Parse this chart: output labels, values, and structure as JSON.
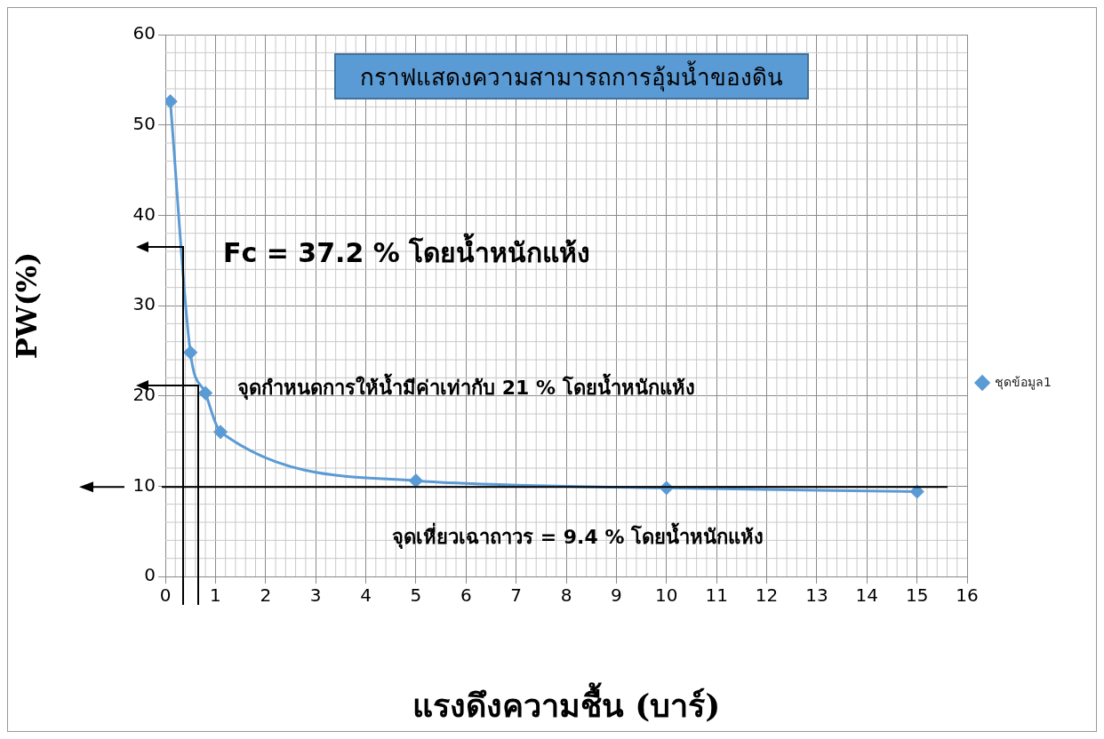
{
  "chart_data": {
    "type": "line",
    "title": "กราฟแสดงความสามารถการอุ้มน้ำของดิน",
    "xlabel": "แรงดึงความชื้น (บาร์)",
    "ylabel": "PW(%)",
    "x": [
      0.1,
      0.5,
      0.8,
      1.1,
      5,
      10,
      15
    ],
    "series": [
      {
        "name": "ชุดข้อมูล1",
        "color": "#5b9bd5",
        "values": [
          52.6,
          24.8,
          20.3,
          16,
          10.6,
          9.8,
          9.4
        ]
      }
    ],
    "xlim": [
      0,
      16
    ],
    "xticks": [
      0,
      1,
      2,
      3,
      4,
      5,
      6,
      7,
      8,
      9,
      10,
      11,
      12,
      13,
      14,
      15,
      16
    ],
    "ylim": [
      0,
      60
    ],
    "yticks": [
      0,
      10,
      20,
      30,
      40,
      50,
      60
    ],
    "ref_lines": [
      {
        "axis": "y",
        "value": 9.9,
        "color": "#000000"
      }
    ],
    "grid": true,
    "legend": "right",
    "marker": "diamond",
    "line_style": "solid",
    "annotations": [
      "Fc = 37.2 % โดยน้ำหนักแห้ง",
      "จุดกำหนดการให้น้ำมีค่าเท่ากับ 21 % โดยน้ำหนักแห้ง",
      "จุดเหี่ยวเฉาถาวร = 9.4 % โดยน้ำหนักแห้ง"
    ]
  }
}
